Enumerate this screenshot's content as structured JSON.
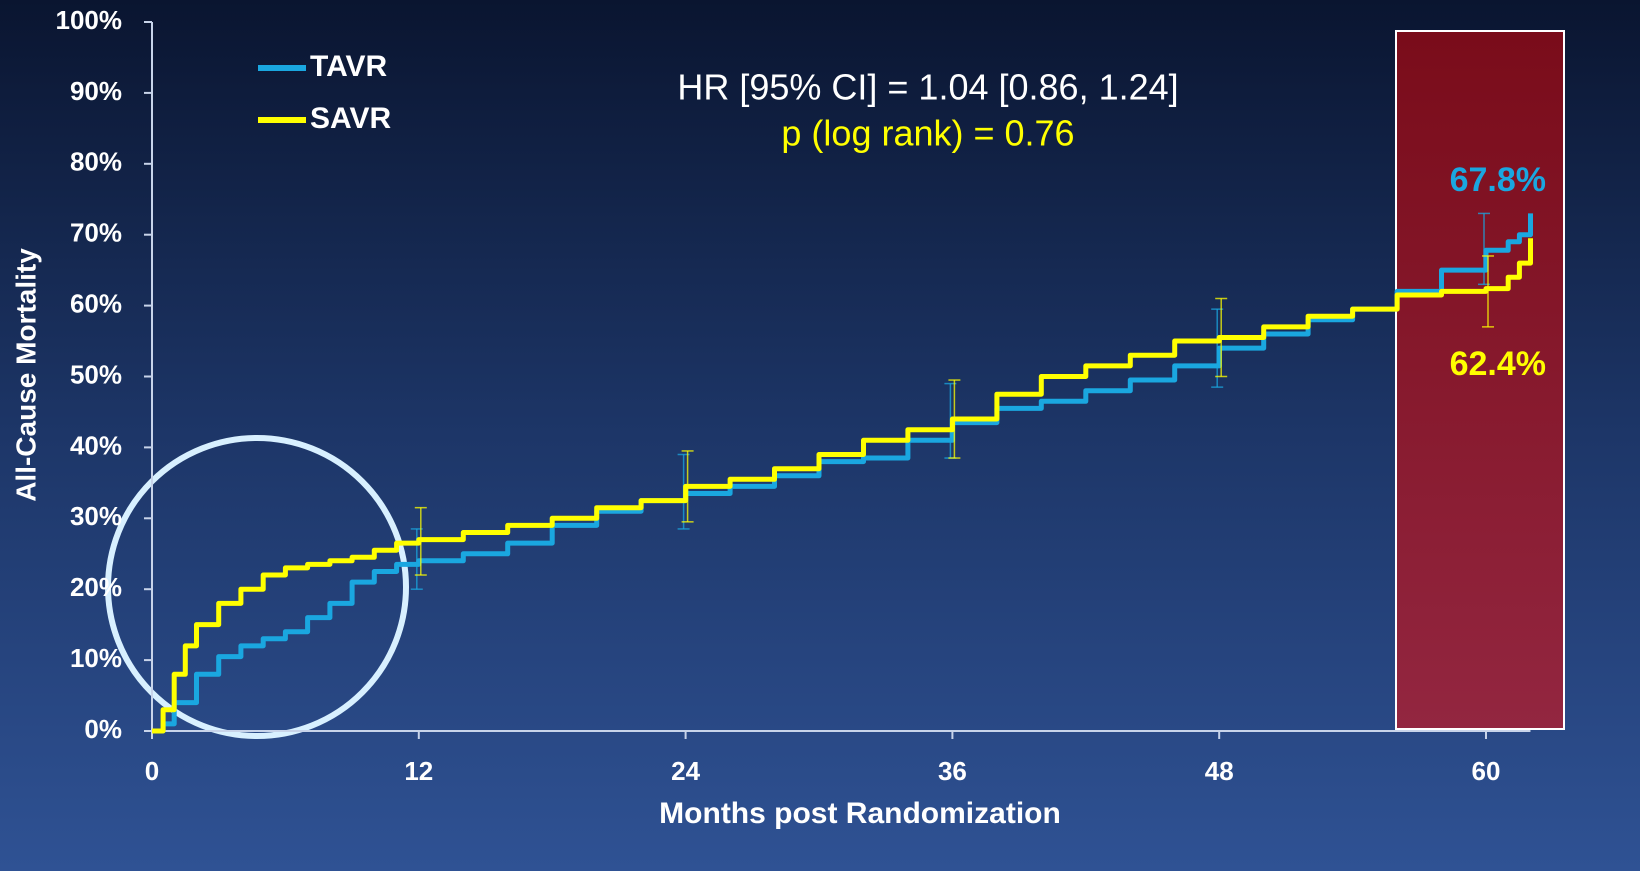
{
  "chart_data": {
    "type": "line",
    "xlabel": "Months post Randomization",
    "ylabel": "All-Cause Mortality",
    "xlim": [
      0,
      62
    ],
    "xticks": [
      0,
      12,
      24,
      36,
      48,
      60
    ],
    "ylim": [
      0,
      100
    ],
    "yticks": [
      {
        "value": 0,
        "label": "0%"
      },
      {
        "value": 10,
        "label": "10%"
      },
      {
        "value": 20,
        "label": "20%"
      },
      {
        "value": 30,
        "label": "30%"
      },
      {
        "value": 40,
        "label": "40%"
      },
      {
        "value": 50,
        "label": "50%"
      },
      {
        "value": 60,
        "label": "60%"
      },
      {
        "value": 70,
        "label": "70%"
      },
      {
        "value": 80,
        "label": "80%"
      },
      {
        "value": 90,
        "label": "90%"
      },
      {
        "value": 100,
        "label": "100%"
      }
    ],
    "grid": false,
    "legend": "upper left",
    "series": [
      {
        "name": "TAVR",
        "color": "#1aa7e0",
        "x": [
          0,
          0.5,
          1,
          2,
          3,
          4,
          5,
          6,
          7,
          8,
          9,
          10,
          11,
          12,
          14,
          16,
          18,
          20,
          22,
          24,
          26,
          28,
          30,
          32,
          34,
          36,
          38,
          40,
          42,
          44,
          46,
          48,
          50,
          52,
          54,
          56,
          58,
          60,
          61,
          61.5,
          62
        ],
        "values": [
          0,
          1,
          4,
          8,
          10.5,
          12,
          13,
          14,
          16,
          18,
          21,
          22.5,
          23.5,
          24,
          25,
          26.5,
          29,
          31,
          32.5,
          33.5,
          34.5,
          36,
          38,
          38.5,
          41,
          43.5,
          45.5,
          46.5,
          48,
          49.5,
          51.5,
          54,
          56,
          58,
          59.5,
          62,
          65,
          67.8,
          69,
          70,
          73
        ],
        "errorbars": {
          "x": [
            12,
            24,
            36,
            48,
            60
          ],
          "low": [
            20,
            28.5,
            38.5,
            48.5,
            63
          ],
          "high": [
            28.5,
            39,
            49,
            59.5,
            73
          ]
        }
      },
      {
        "name": "SAVR",
        "color": "#ffff00",
        "x": [
          0,
          0.5,
          1,
          1.5,
          2,
          3,
          4,
          5,
          6,
          7,
          8,
          9,
          10,
          11,
          12,
          14,
          16,
          18,
          20,
          22,
          24,
          26,
          28,
          30,
          32,
          34,
          36,
          38,
          40,
          42,
          44,
          46,
          48,
          50,
          52,
          54,
          56,
          58,
          60,
          61,
          61.5,
          62
        ],
        "values": [
          0,
          3,
          8,
          12,
          15,
          18,
          20,
          22,
          23,
          23.5,
          24,
          24.5,
          25.5,
          26.5,
          27,
          28,
          29,
          30,
          31.5,
          32.5,
          34.5,
          35.5,
          37,
          39,
          41,
          42.5,
          44,
          47.5,
          50,
          51.5,
          53,
          55,
          55.5,
          57,
          58.5,
          59.5,
          61.5,
          62,
          62.4,
          64,
          66,
          69.5
        ],
        "errorbars": {
          "x": [
            12,
            24,
            36,
            48,
            60
          ],
          "low": [
            22,
            29.5,
            38.5,
            50,
            57
          ],
          "high": [
            31.5,
            39.5,
            49.5,
            61,
            67
          ]
        }
      }
    ],
    "annotations": [
      {
        "text": "HR [95% CI] = 1.04 [0.86, 1.24]",
        "color": "#ffffff"
      },
      {
        "text": "p (log rank) = 0.76",
        "color": "#ffff00"
      },
      {
        "text": "67.8%",
        "color": "#1aa7e0"
      },
      {
        "text": "62.4%",
        "color": "#ffff00"
      }
    ]
  }
}
